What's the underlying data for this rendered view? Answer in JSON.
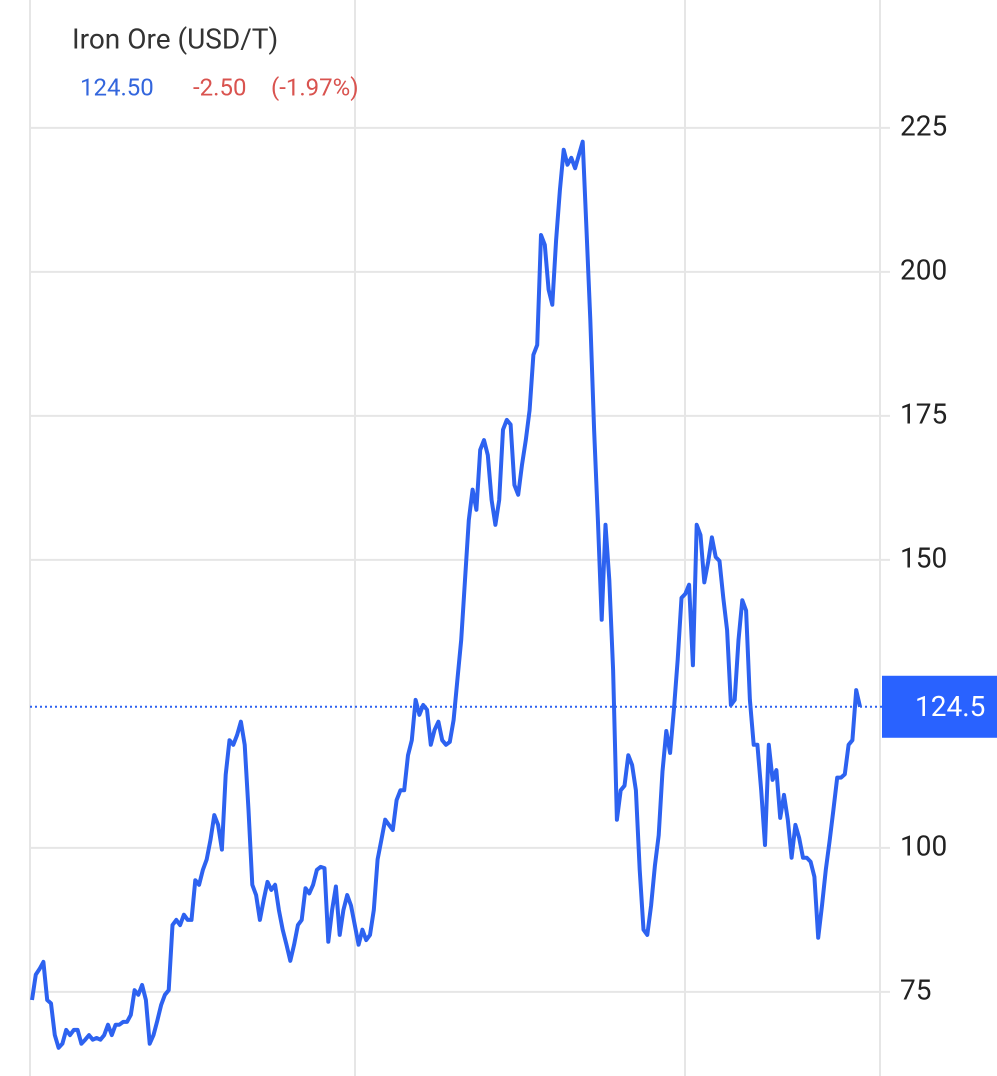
{
  "chart_data": {
    "type": "line",
    "title": "Iron Ore (USD/T)",
    "price": "124.50",
    "change": "-2.50",
    "change_pct": "(-1.97%)",
    "current": 124.5,
    "series": [
      {
        "name": "Iron Ore",
        "color": "#2d62f0",
        "values": [
          73.6,
          78,
          79,
          80.2,
          73.6,
          73,
          67.5,
          65.3,
          66,
          68.4,
          67.5,
          68.4,
          68.4,
          66,
          66.7,
          67.5,
          66.7,
          67,
          66.7,
          67.5,
          69.3,
          67.5,
          69.3,
          69.3,
          69.8,
          69.8,
          71,
          75.3,
          74.5,
          76.2,
          73.6,
          66,
          67.5,
          70,
          72.7,
          74.5,
          75.3,
          86.6,
          87.5,
          86.6,
          88.4,
          87.5,
          87.5,
          94.4,
          93.6,
          96.2,
          98,
          101.4,
          105.7,
          104,
          99.7,
          112.7,
          118.7,
          117.9,
          119.6,
          121.9,
          117.9,
          106.6,
          93.6,
          91.8,
          87.5,
          91,
          94.1,
          92.7,
          93.6,
          89.2,
          85.8,
          83.2,
          80.4,
          83.2,
          86.6,
          87.5,
          93,
          92.1,
          93.6,
          96.2,
          96.7,
          96.5,
          83.7,
          89.2,
          93.3,
          84.9,
          89.2,
          91.8,
          90,
          86.6,
          83.2,
          85.8,
          84,
          84.9,
          89.2,
          98,
          101.4,
          104.9,
          104,
          103.1,
          108.3,
          110,
          110,
          116.1,
          118.7,
          125.7,
          123.1,
          124.8,
          124,
          117.9,
          120.5,
          121.9,
          118.7,
          117.9,
          118.4,
          122.2,
          129.2,
          136.1,
          146.5,
          156.9,
          162.2,
          158.7,
          169.1,
          170.8,
          168.2,
          160.4,
          156.1,
          160.4,
          172.6,
          174.3,
          173.5,
          163,
          161.3,
          166.5,
          170.8,
          176,
          185.6,
          187.3,
          206.4,
          204.7,
          196.9,
          194.3,
          205.5,
          214.2,
          221.2,
          218.6,
          219.8,
          218,
          220.3,
          222.6,
          207.3,
          191.7,
          172.6,
          156.9,
          139.6,
          156.1,
          146.5,
          130.9,
          104.9,
          110,
          110.8,
          116.1,
          114.4,
          110,
          96.2,
          85.8,
          84.9,
          90,
          96.9,
          102.2,
          113.3,
          120.3,
          116.5,
          124,
          132.7,
          143.4,
          144.1,
          145.7,
          131.7,
          156.1,
          154.3,
          146.1,
          149.6,
          153.9,
          150.5,
          149.8,
          143.4,
          137.8,
          124.8,
          125.7,
          136.1,
          143,
          141.2,
          125.7,
          117.9,
          117.9,
          110,
          100.5,
          117.9,
          111.8,
          113.5,
          105.2,
          109.2,
          104.9,
          98.3,
          104,
          101.7,
          98.3,
          98.3,
          97.6,
          95,
          84.4,
          90,
          96.2,
          101.2,
          106.6,
          112.2,
          112.2,
          112.8,
          117.9,
          118.7,
          127.4,
          124.5
        ]
      }
    ],
    "ylim": [
      60.4,
      247.2
    ],
    "yticks": [
      75,
      100,
      150,
      175,
      200,
      225
    ],
    "grid": true
  }
}
